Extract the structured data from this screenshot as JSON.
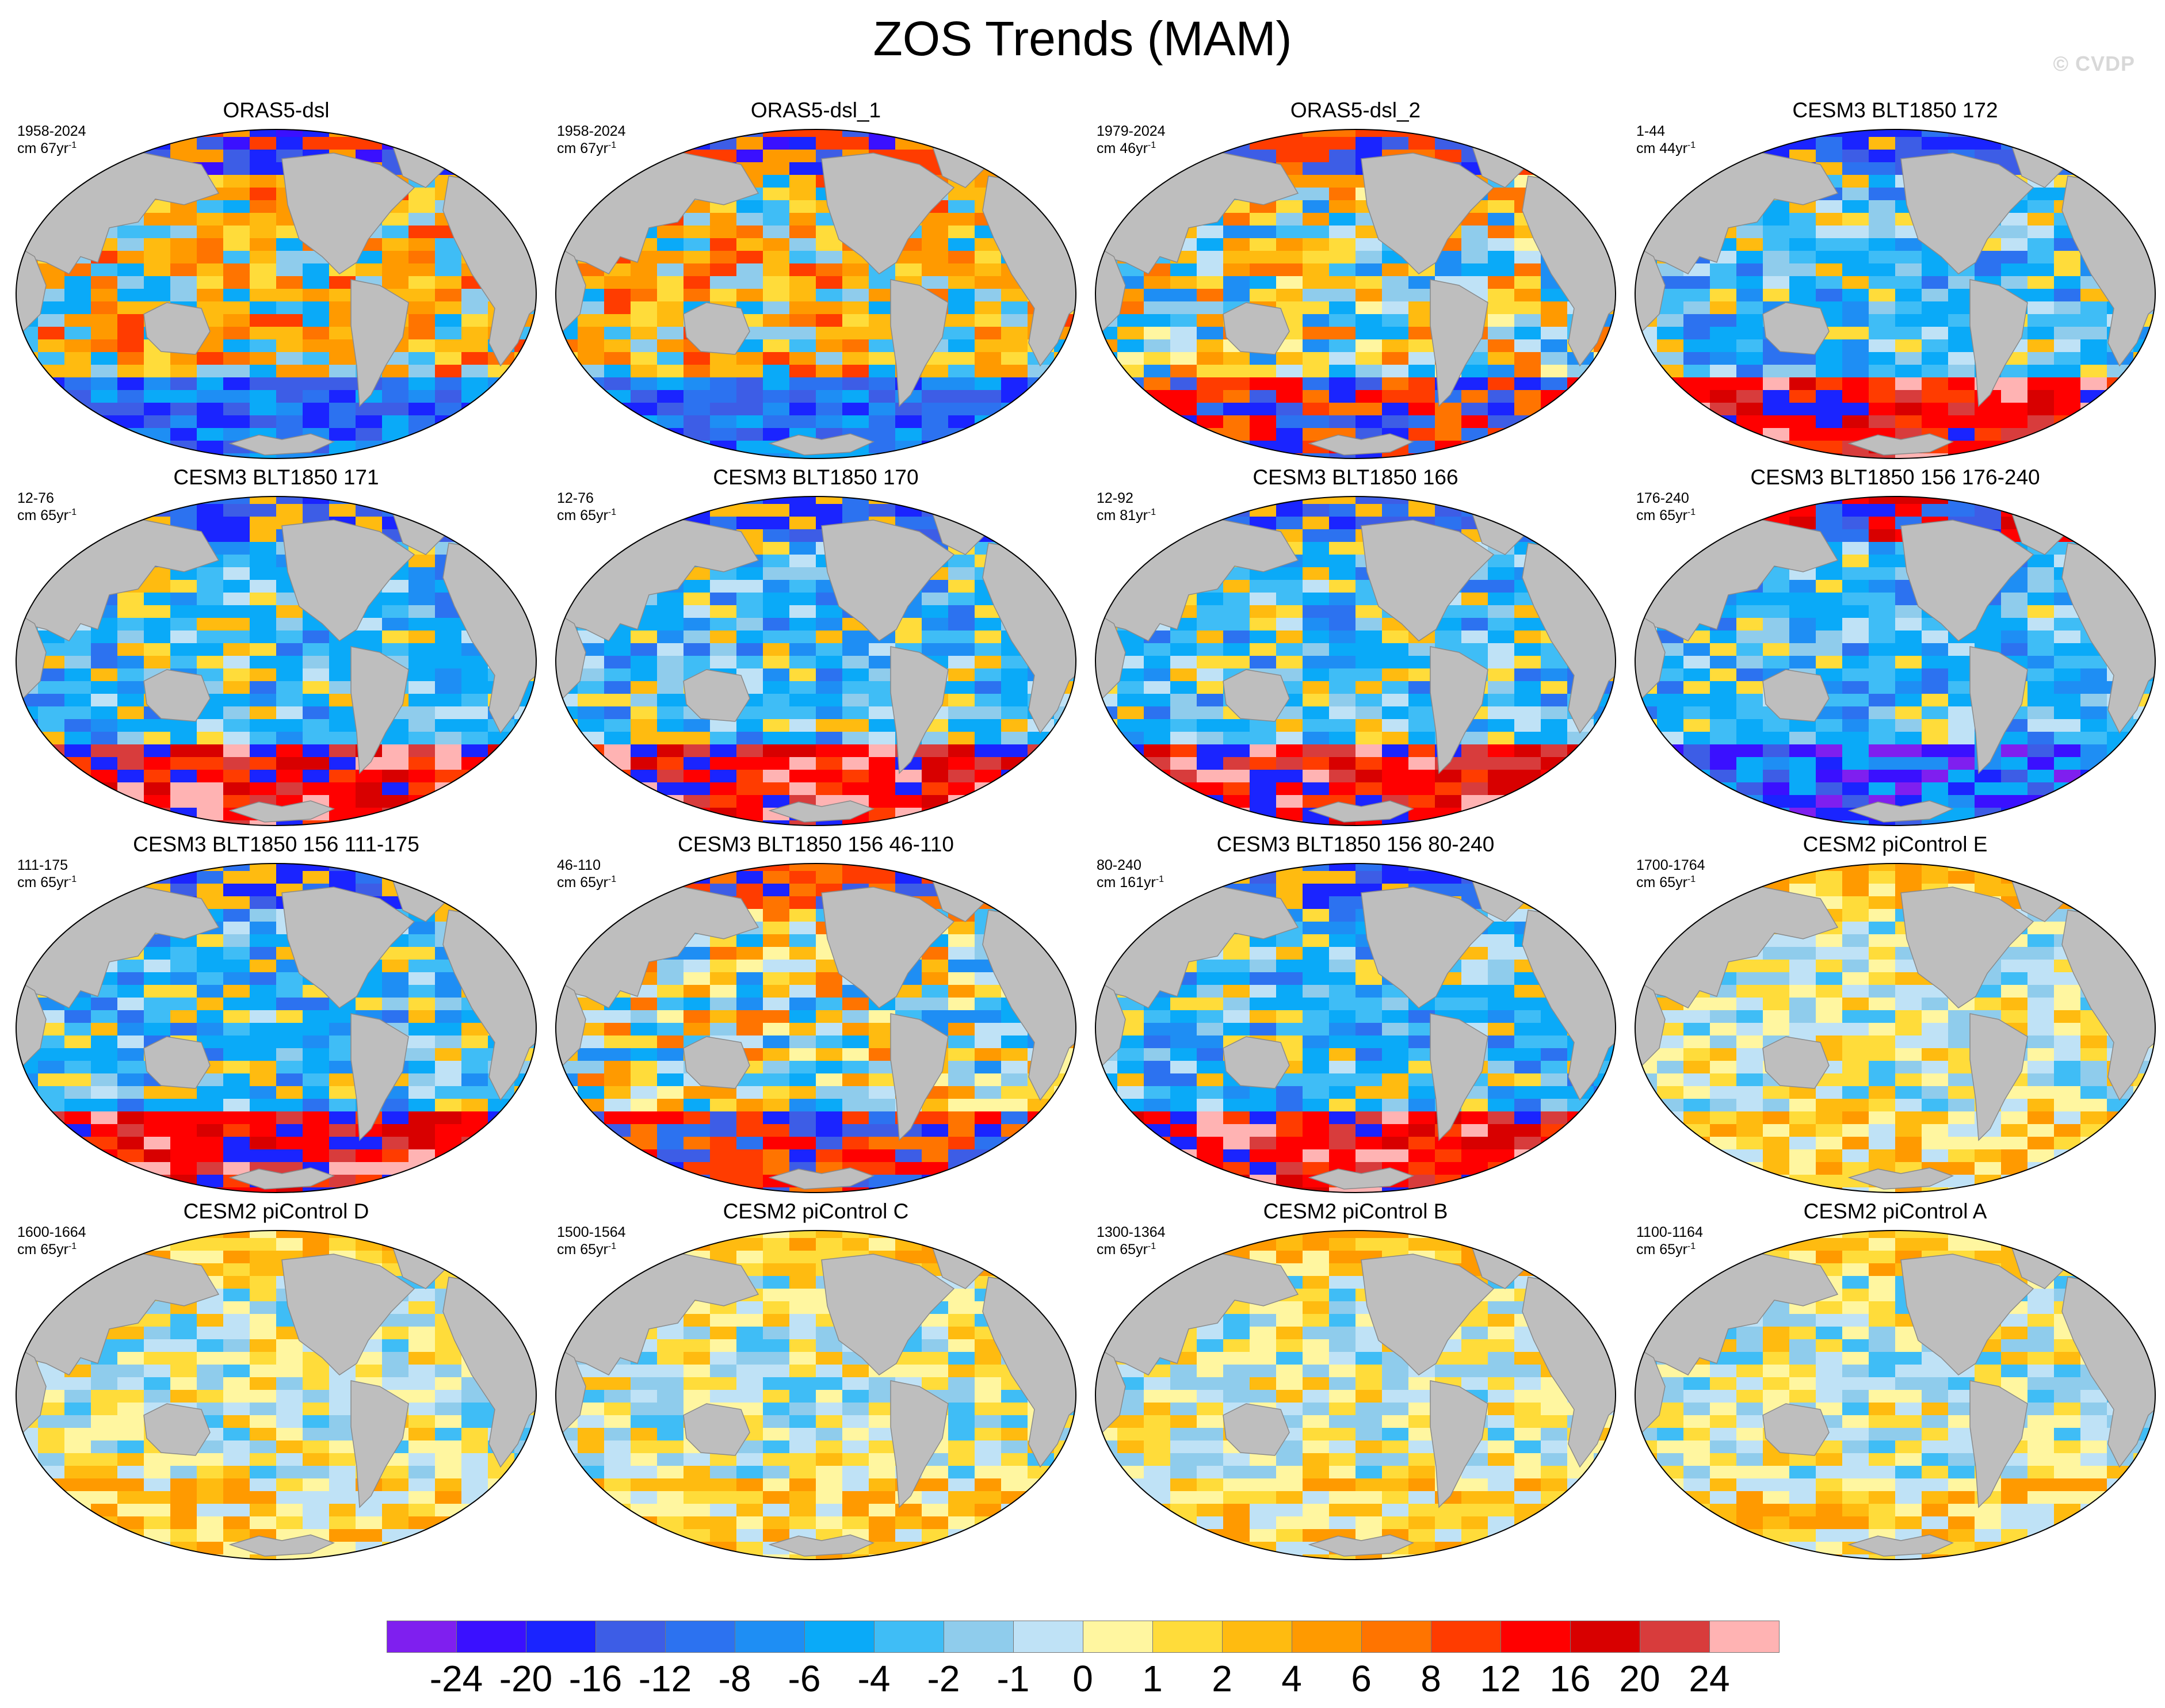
{
  "title": "ZOS Trends (MAM)",
  "watermark": "© CVDP",
  "land_color": "#bebebe",
  "colorbar": {
    "colors": [
      "#7f1fef",
      "#3a10ff",
      "#1a24ff",
      "#3d5de6",
      "#2c72f0",
      "#1e8ef4",
      "#0aaaf8",
      "#3fbdf6",
      "#8fccec",
      "#bfe2f6",
      "#fff6a0",
      "#ffdc3a",
      "#ffbb10",
      "#ff9a00",
      "#ff7400",
      "#ff3c00",
      "#ff0000",
      "#d80000",
      "#d83c3c",
      "#ffb3b3"
    ],
    "labels": [
      "-24",
      "-20",
      "-16",
      "-12",
      "-8",
      "-6",
      "-4",
      "-2",
      "-1",
      "0",
      "1",
      "2",
      "4",
      "6",
      "8",
      "12",
      "16",
      "20",
      "24"
    ]
  },
  "panels": [
    {
      "title": "ORAS5-dsl",
      "period": "1958-2024",
      "unit": "cm 67yr",
      "unit_exp": "-1",
      "palette": "warm"
    },
    {
      "title": "ORAS5-dsl_1",
      "period": "1958-2024",
      "unit": "cm 67yr",
      "unit_exp": "-1",
      "palette": "warm"
    },
    {
      "title": "ORAS5-dsl_2",
      "period": "1979-2024",
      "unit": "cm 46yr",
      "unit_exp": "-1",
      "palette": "mixed"
    },
    {
      "title": "CESM3 BLT1850 172",
      "period": "1-44",
      "unit": "cm 44yr",
      "unit_exp": "-1",
      "palette": "cool-red-south"
    },
    {
      "title": "CESM3 BLT1850 171",
      "period": "12-76",
      "unit": "cm 65yr",
      "unit_exp": "-1",
      "palette": "cool-red-south"
    },
    {
      "title": "CESM3 BLT1850 170",
      "period": "12-76",
      "unit": "cm 65yr",
      "unit_exp": "-1",
      "palette": "cool-red-south"
    },
    {
      "title": "CESM3 BLT1850 166",
      "period": "12-92",
      "unit": "cm 81yr",
      "unit_exp": "-1",
      "palette": "cool-red-south"
    },
    {
      "title": "CESM3 BLT1850 156 176-240",
      "period": "176-240",
      "unit": "cm 65yr",
      "unit_exp": "-1",
      "palette": "cool"
    },
    {
      "title": "CESM3 BLT1850 156 111-175",
      "period": "111-175",
      "unit": "cm 65yr",
      "unit_exp": "-1",
      "palette": "cool-red-south"
    },
    {
      "title": "CESM3 BLT1850 156 46-110",
      "period": "46-110",
      "unit": "cm 65yr",
      "unit_exp": "-1",
      "palette": "mixed"
    },
    {
      "title": "CESM3 BLT1850 156 80-240",
      "period": "80-240",
      "unit": "cm 161yr",
      "unit_exp": "-1",
      "palette": "cool-red-south"
    },
    {
      "title": "CESM2 piControl E",
      "period": "1700-1764",
      "unit": "cm 65yr",
      "unit_exp": "-1",
      "palette": "pale"
    },
    {
      "title": "CESM2 piControl D",
      "period": "1600-1664",
      "unit": "cm 65yr",
      "unit_exp": "-1",
      "palette": "pale"
    },
    {
      "title": "CESM2 piControl C",
      "period": "1500-1564",
      "unit": "cm 65yr",
      "unit_exp": "-1",
      "palette": "pale"
    },
    {
      "title": "CESM2 piControl B",
      "period": "1300-1364",
      "unit": "cm 65yr",
      "unit_exp": "-1",
      "palette": "pale"
    },
    {
      "title": "CESM2 piControl A",
      "period": "1100-1164",
      "unit": "cm 65yr",
      "unit_exp": "-1",
      "palette": "pale"
    }
  ]
}
